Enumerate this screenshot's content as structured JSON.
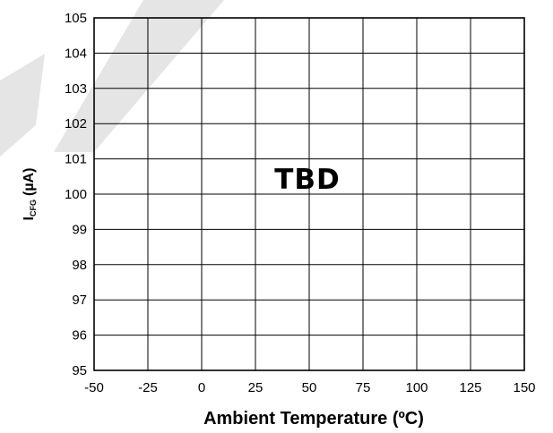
{
  "chart_data": {
    "type": "line",
    "title": "",
    "xlabel": "Ambient Temperature (ºC)",
    "ylabel": {
      "symbol": "I",
      "subscript": "CFG",
      "unit": "(µA)"
    },
    "xlim": [
      -50,
      150
    ],
    "ylim": [
      95,
      105
    ],
    "x_ticks": [
      "-50",
      "-25",
      "0",
      "25",
      "50",
      "75",
      "100",
      "125",
      "150"
    ],
    "y_ticks": [
      "95",
      "96",
      "97",
      "98",
      "99",
      "100",
      "101",
      "102",
      "103",
      "104",
      "105"
    ],
    "grid": true,
    "series": [],
    "annotation": "TBD"
  }
}
